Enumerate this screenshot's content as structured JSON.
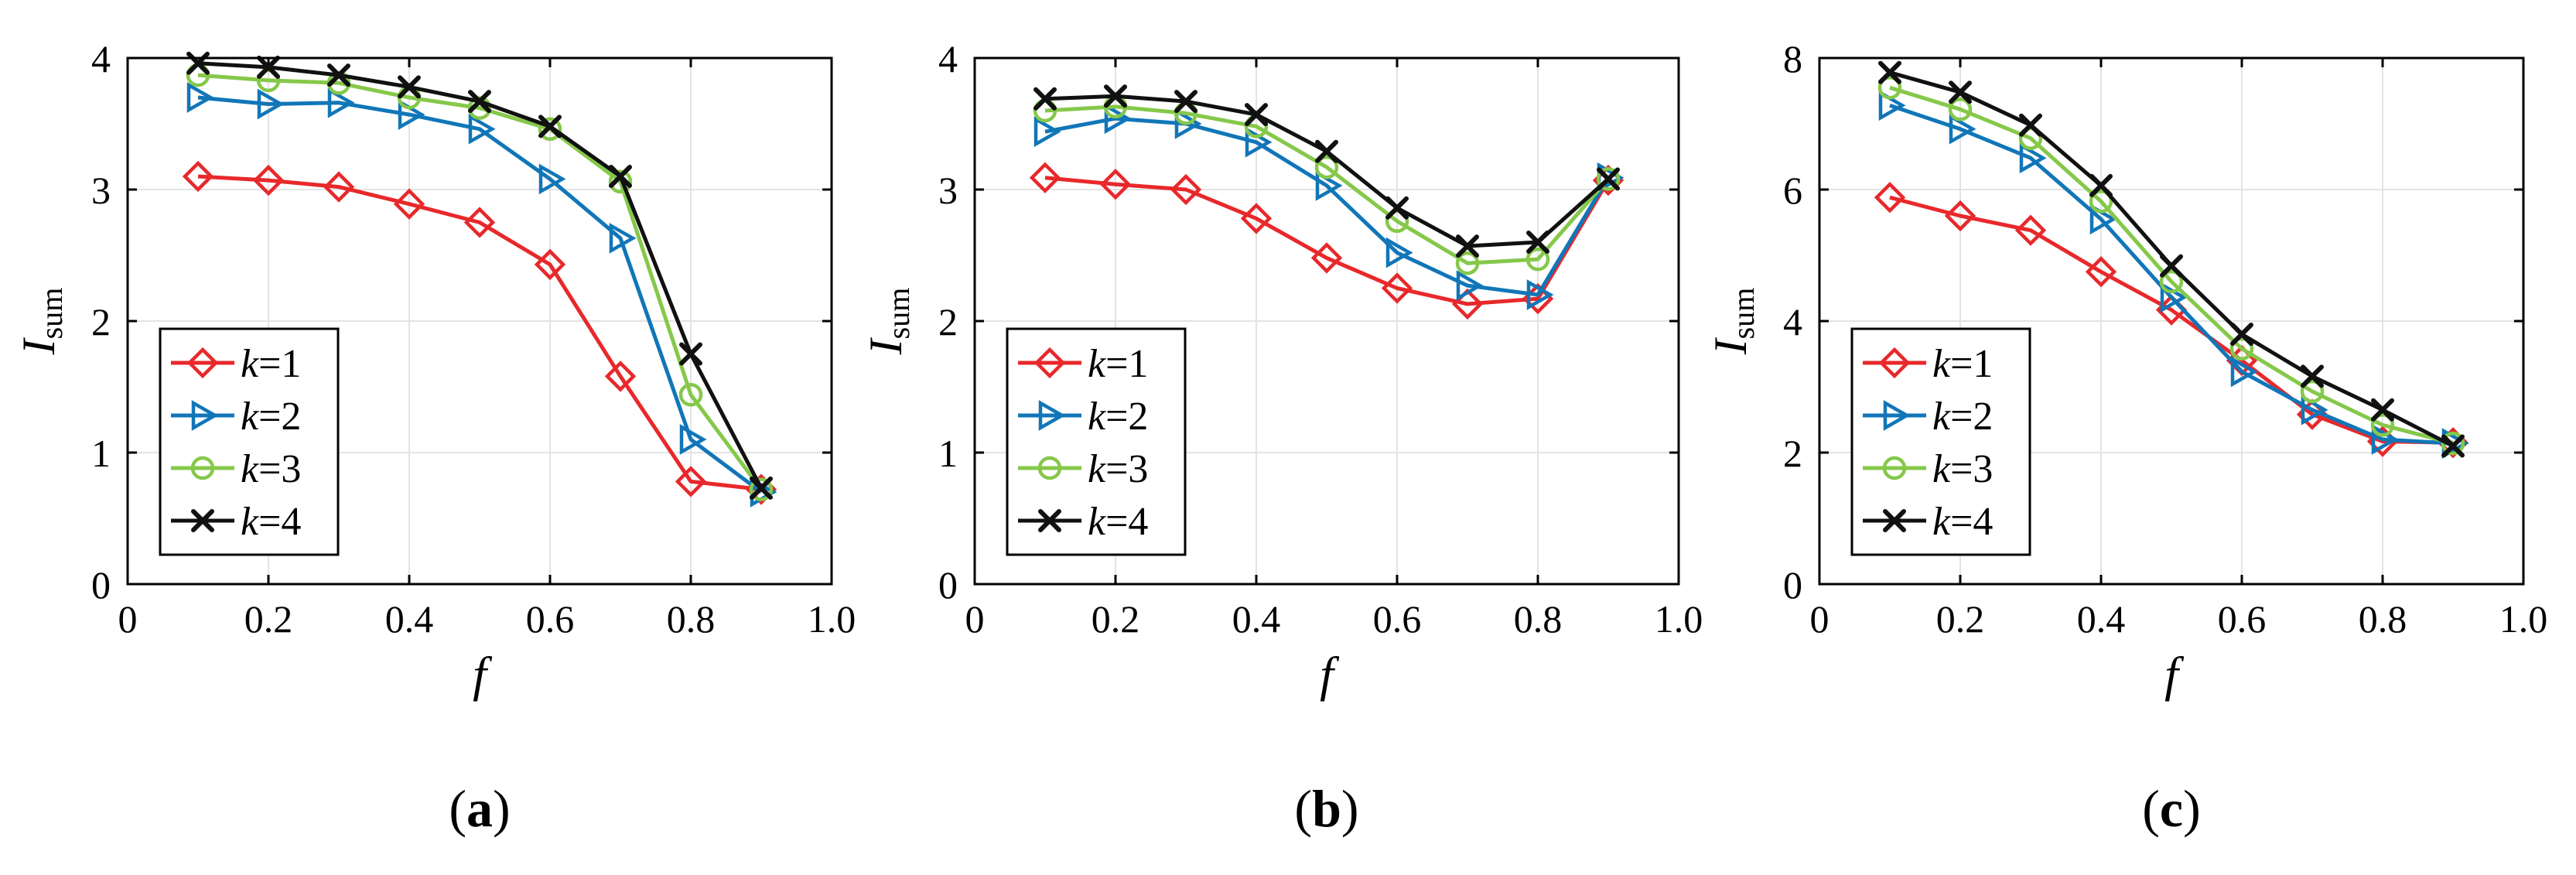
{
  "colors": {
    "k1": "#e8282b",
    "k2": "#1176b8",
    "k3": "#85c84a",
    "k4": "#111111"
  },
  "chart_data": [
    {
      "type": "line",
      "caption_open": "(",
      "caption_letter": "a",
      "caption_close": ")",
      "xlabel": "f",
      "ylabel": "I",
      "ylabel_sub": "sum",
      "xlim": [
        0,
        1.0
      ],
      "ylim": [
        0,
        4
      ],
      "xticks": [
        "0",
        "0.2",
        "0.4",
        "0.6",
        "0.8",
        "1.0"
      ],
      "xtick_values": [
        0,
        0.2,
        0.4,
        0.6,
        0.8,
        1.0
      ],
      "yticks": [
        "0",
        "1",
        "2",
        "3",
        "4"
      ],
      "ytick_values": [
        0,
        1,
        2,
        3,
        4
      ],
      "grid": true,
      "legend_position": "bottom-left",
      "x": [
        0.1,
        0.2,
        0.3,
        0.4,
        0.5,
        0.6,
        0.7,
        0.8,
        0.9
      ],
      "series": [
        {
          "key": "k1",
          "name_var": "k",
          "name_eq": "=1",
          "marker": "diamond",
          "values": [
            3.1,
            3.07,
            3.02,
            2.89,
            2.75,
            2.43,
            1.58,
            0.78,
            0.72
          ]
        },
        {
          "key": "k2",
          "name_var": "k",
          "name_eq": "=2",
          "marker": "triangle-right",
          "values": [
            3.7,
            3.65,
            3.66,
            3.57,
            3.46,
            3.08,
            2.63,
            1.1,
            0.7
          ]
        },
        {
          "key": "k3",
          "name_var": "k",
          "name_eq": "=3",
          "marker": "circle",
          "values": [
            3.87,
            3.83,
            3.81,
            3.7,
            3.62,
            3.46,
            3.06,
            1.44,
            0.72
          ]
        },
        {
          "key": "k4",
          "name_var": "k",
          "name_eq": "=4",
          "marker": "x",
          "values": [
            3.96,
            3.93,
            3.87,
            3.78,
            3.67,
            3.48,
            3.1,
            1.75,
            0.73
          ]
        }
      ]
    },
    {
      "type": "line",
      "caption_open": "(",
      "caption_letter": "b",
      "caption_close": ")",
      "xlabel": "f",
      "ylabel": "I",
      "ylabel_sub": "sum",
      "xlim": [
        0,
        1.0
      ],
      "ylim": [
        0,
        4
      ],
      "xticks": [
        "0",
        "0.2",
        "0.4",
        "0.6",
        "0.8",
        "1.0"
      ],
      "xtick_values": [
        0,
        0.2,
        0.4,
        0.6,
        0.8,
        1.0
      ],
      "yticks": [
        "0",
        "1",
        "2",
        "3",
        "4"
      ],
      "ytick_values": [
        0,
        1,
        2,
        3,
        4
      ],
      "grid": true,
      "legend_position": "bottom-left",
      "x": [
        0.1,
        0.2,
        0.3,
        0.4,
        0.5,
        0.6,
        0.7,
        0.8,
        0.9
      ],
      "series": [
        {
          "key": "k1",
          "name_var": "k",
          "name_eq": "=1",
          "marker": "diamond",
          "values": [
            3.09,
            3.04,
            3.0,
            2.78,
            2.48,
            2.25,
            2.13,
            2.17,
            3.07
          ]
        },
        {
          "key": "k2",
          "name_var": "k",
          "name_eq": "=2",
          "marker": "triangle-right",
          "values": [
            3.44,
            3.54,
            3.5,
            3.36,
            3.03,
            2.52,
            2.27,
            2.2,
            3.09
          ]
        },
        {
          "key": "k3",
          "name_var": "k",
          "name_eq": "=3",
          "marker": "circle",
          "values": [
            3.6,
            3.63,
            3.58,
            3.48,
            3.17,
            2.76,
            2.44,
            2.47,
            3.08
          ]
        },
        {
          "key": "k4",
          "name_var": "k",
          "name_eq": "=4",
          "marker": "x",
          "values": [
            3.69,
            3.71,
            3.67,
            3.57,
            3.29,
            2.86,
            2.57,
            2.6,
            3.08
          ]
        }
      ]
    },
    {
      "type": "line",
      "caption_open": "(",
      "caption_letter": "c",
      "caption_close": ")",
      "xlabel": "f",
      "ylabel": "I",
      "ylabel_sub": "sum",
      "xlim": [
        0,
        1.0
      ],
      "ylim": [
        0,
        8
      ],
      "xticks": [
        "0",
        "0.2",
        "0.4",
        "0.6",
        "0.8",
        "1.0"
      ],
      "xtick_values": [
        0,
        0.2,
        0.4,
        0.6,
        0.8,
        1.0
      ],
      "yticks": [
        "0",
        "2",
        "4",
        "6",
        "8"
      ],
      "ytick_values": [
        0,
        2,
        4,
        6,
        8
      ],
      "grid": true,
      "legend_position": "bottom-left",
      "x": [
        0.1,
        0.2,
        0.3,
        0.4,
        0.5,
        0.6,
        0.7,
        0.8,
        0.9
      ],
      "series": [
        {
          "key": "k1",
          "name_var": "k",
          "name_eq": "=1",
          "marker": "diamond",
          "values": [
            5.88,
            5.6,
            5.38,
            4.75,
            4.17,
            3.4,
            2.58,
            2.17,
            2.15
          ]
        },
        {
          "key": "k2",
          "name_var": "k",
          "name_eq": "=2",
          "marker": "triangle-right",
          "values": [
            7.28,
            6.92,
            6.48,
            5.55,
            4.36,
            3.23,
            2.65,
            2.2,
            2.14
          ]
        },
        {
          "key": "k3",
          "name_var": "k",
          "name_eq": "=3",
          "marker": "circle",
          "values": [
            7.55,
            7.22,
            6.78,
            5.82,
            4.6,
            3.58,
            2.93,
            2.42,
            2.14
          ]
        },
        {
          "key": "k4",
          "name_var": "k",
          "name_eq": "=4",
          "marker": "x",
          "values": [
            7.78,
            7.48,
            6.98,
            6.06,
            4.84,
            3.8,
            3.16,
            2.65,
            2.1
          ]
        }
      ]
    }
  ]
}
